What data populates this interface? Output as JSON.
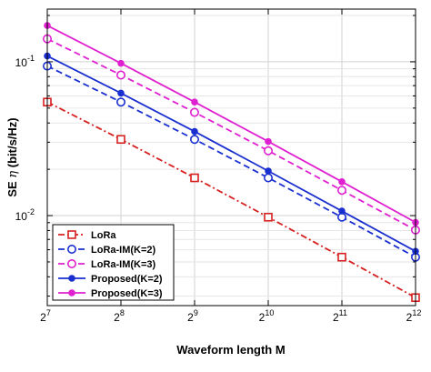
{
  "chart_data": {
    "type": "line",
    "xlabel": "Waveform length M",
    "ylabel_main": "SE ",
    "ylabel_symbol": "η",
    "ylabel_unit": " (bit/s/Hz)",
    "x": [
      7,
      8,
      9,
      10,
      11,
      12
    ],
    "x_tick_base": "2",
    "x_tick_exponents": [
      "7",
      "8",
      "9",
      "10",
      "11",
      "12"
    ],
    "xlim": [
      7,
      12
    ],
    "y_scale": "log",
    "ylim": [
      0.0026,
      0.22
    ],
    "y_ticks": [
      {
        "value": 0.1,
        "base": "10",
        "exponent": "-1"
      },
      {
        "value": 0.01,
        "base": "10",
        "exponent": "-2"
      }
    ],
    "grid": true,
    "legend_position": "bottom-left",
    "series": [
      {
        "name": "LoRa",
        "color": "#d62020",
        "style": "dashdot",
        "marker": "square-open",
        "values": [
          0.0547,
          0.0313,
          0.0176,
          0.00977,
          0.00537,
          0.00293
        ]
      },
      {
        "name": "LoRa-IM(K=2)",
        "color": "#1a2fd0",
        "style": "dashed",
        "marker": "circle-open",
        "values": [
          0.0938,
          0.0547,
          0.0313,
          0.0176,
          0.00977,
          0.00537
        ]
      },
      {
        "name": "LoRa-IM(K=3)",
        "color": "#e020d0",
        "style": "dashed",
        "marker": "circle-open",
        "values": [
          0.141,
          0.082,
          0.0469,
          0.0264,
          0.0146,
          0.00806
        ]
      },
      {
        "name": "Proposed(K=2)",
        "color": "#1a2fd0",
        "style": "solid",
        "marker": "dot",
        "values": [
          0.109,
          0.0625,
          0.0352,
          0.0195,
          0.0107,
          0.00586
        ]
      },
      {
        "name": "Proposed(K=3)",
        "color": "#e020d0",
        "style": "solid",
        "marker": "dot",
        "values": [
          0.172,
          0.0977,
          0.0547,
          0.0303,
          0.0166,
          0.00903
        ]
      }
    ]
  }
}
